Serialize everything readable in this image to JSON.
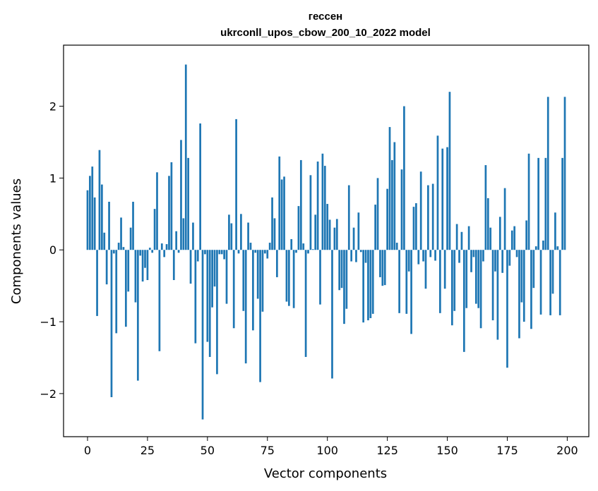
{
  "chart_data": {
    "type": "bar",
    "title": "гессен",
    "subtitle": "ukrconll_upos_cbow_200_10_2022 model",
    "xlabel": "Vector components",
    "ylabel": "Components values",
    "xlim": [
      -10,
      209
    ],
    "ylim": [
      -2.6,
      2.85
    ],
    "xticks": [
      0,
      25,
      50,
      75,
      100,
      125,
      150,
      175,
      200
    ],
    "xtick_labels": [
      "0",
      "25",
      "50",
      "75",
      "100",
      "125",
      "150",
      "175",
      "200"
    ],
    "yticks": [
      -2,
      -1,
      0,
      1,
      2
    ],
    "ytick_labels": [
      "−2",
      "−1",
      "0",
      "1",
      "2"
    ],
    "grid": false,
    "legend": "none",
    "bar_color": "#1f77b4",
    "x": [
      0,
      1,
      2,
      3,
      4,
      5,
      6,
      7,
      8,
      9,
      10,
      11,
      12,
      13,
      14,
      15,
      16,
      17,
      18,
      19,
      20,
      21,
      22,
      23,
      24,
      25,
      26,
      27,
      28,
      29,
      30,
      31,
      32,
      33,
      34,
      35,
      36,
      37,
      38,
      39,
      40,
      41,
      42,
      43,
      44,
      45,
      46,
      47,
      48,
      49,
      50,
      51,
      52,
      53,
      54,
      55,
      56,
      57,
      58,
      59,
      60,
      61,
      62,
      63,
      64,
      65,
      66,
      67,
      68,
      69,
      70,
      71,
      72,
      73,
      74,
      75,
      76,
      77,
      78,
      79,
      80,
      81,
      82,
      83,
      84,
      85,
      86,
      87,
      88,
      89,
      90,
      91,
      92,
      93,
      94,
      95,
      96,
      97,
      98,
      99,
      100,
      101,
      102,
      103,
      104,
      105,
      106,
      107,
      108,
      109,
      110,
      111,
      112,
      113,
      114,
      115,
      116,
      117,
      118,
      119,
      120,
      121,
      122,
      123,
      124,
      125,
      126,
      127,
      128,
      129,
      130,
      131,
      132,
      133,
      134,
      135,
      136,
      137,
      138,
      139,
      140,
      141,
      142,
      143,
      144,
      145,
      146,
      147,
      148,
      149,
      150,
      151,
      152,
      153,
      154,
      155,
      156,
      157,
      158,
      159,
      160,
      161,
      162,
      163,
      164,
      165,
      166,
      167,
      168,
      169,
      170,
      171,
      172,
      173,
      174,
      175,
      176,
      177,
      178,
      179,
      180,
      181,
      182,
      183,
      184,
      185,
      186,
      187,
      188,
      189,
      190,
      191,
      192,
      193,
      194,
      195,
      196,
      197,
      198,
      199
    ],
    "values": [
      0.83,
      1.03,
      1.16,
      0.73,
      -0.92,
      1.39,
      0.91,
      0.24,
      -0.48,
      0.67,
      -2.05,
      -0.05,
      -1.16,
      0.1,
      0.45,
      0.04,
      -1.07,
      -0.58,
      0.31,
      0.67,
      -0.73,
      -1.82,
      -0.08,
      -0.44,
      -0.25,
      -0.42,
      0.03,
      -0.04,
      0.57,
      1.08,
      -1.41,
      0.09,
      -0.1,
      0.08,
      1.03,
      1.22,
      -0.42,
      0.26,
      -0.04,
      1.53,
      0.44,
      2.58,
      1.28,
      -0.47,
      0.38,
      -1.3,
      -0.16,
      1.76,
      -2.36,
      -0.06,
      -1.28,
      -1.49,
      -0.8,
      -0.51,
      -1.73,
      -0.06,
      -0.06,
      -0.13,
      -0.75,
      0.49,
      0.37,
      -1.09,
      1.82,
      -0.05,
      0.5,
      -0.85,
      -1.58,
      0.38,
      0.1,
      -1.12,
      -0.04,
      -0.68,
      -1.84,
      -0.86,
      -0.05,
      -0.12,
      0.1,
      0.73,
      0.44,
      -0.38,
      1.3,
      0.98,
      1.02,
      -0.72,
      -0.78,
      0.15,
      -0.81,
      -0.04,
      0.61,
      1.25,
      0.09,
      -1.49,
      -0.05,
      1.04,
      0.01,
      0.49,
      1.23,
      -0.76,
      1.34,
      1.17,
      0.64,
      0.42,
      -1.79,
      0.31,
      0.43,
      -0.56,
      -0.53,
      -1.03,
      -0.82,
      0.9,
      -0.16,
      0.31,
      -0.17,
      0.52,
      -0.03,
      -1.01,
      -0.18,
      -0.98,
      -0.95,
      -0.89,
      0.63,
      1.0,
      -0.38,
      -0.5,
      -0.49,
      0.85,
      1.71,
      1.25,
      1.5,
      0.1,
      -0.88,
      1.12,
      2.0,
      -0.89,
      -0.3,
      -1.17,
      0.6,
      0.65,
      -0.2,
      1.09,
      -0.16,
      -0.54,
      0.9,
      -0.1,
      0.92,
      -0.15,
      1.59,
      -0.88,
      1.41,
      -0.54,
      1.43,
      2.2,
      -1.05,
      -0.85,
      0.36,
      -0.18,
      0.25,
      -1.42,
      -0.81,
      0.33,
      -0.31,
      -0.1,
      -0.75,
      -0.81,
      -1.09,
      -0.16,
      1.18,
      0.72,
      0.31,
      -0.98,
      -0.3,
      -1.25,
      0.46,
      -0.32,
      0.86,
      -1.64,
      -0.22,
      0.27,
      0.33,
      -0.1,
      -1.23,
      -0.73,
      -1.0,
      0.41,
      1.34,
      -1.1,
      -0.53,
      0.05,
      1.28,
      -0.9,
      0.13,
      1.28,
      2.13,
      -0.91,
      -0.61,
      0.52,
      0.05,
      -0.91,
      1.28,
      2.13
    ]
  }
}
